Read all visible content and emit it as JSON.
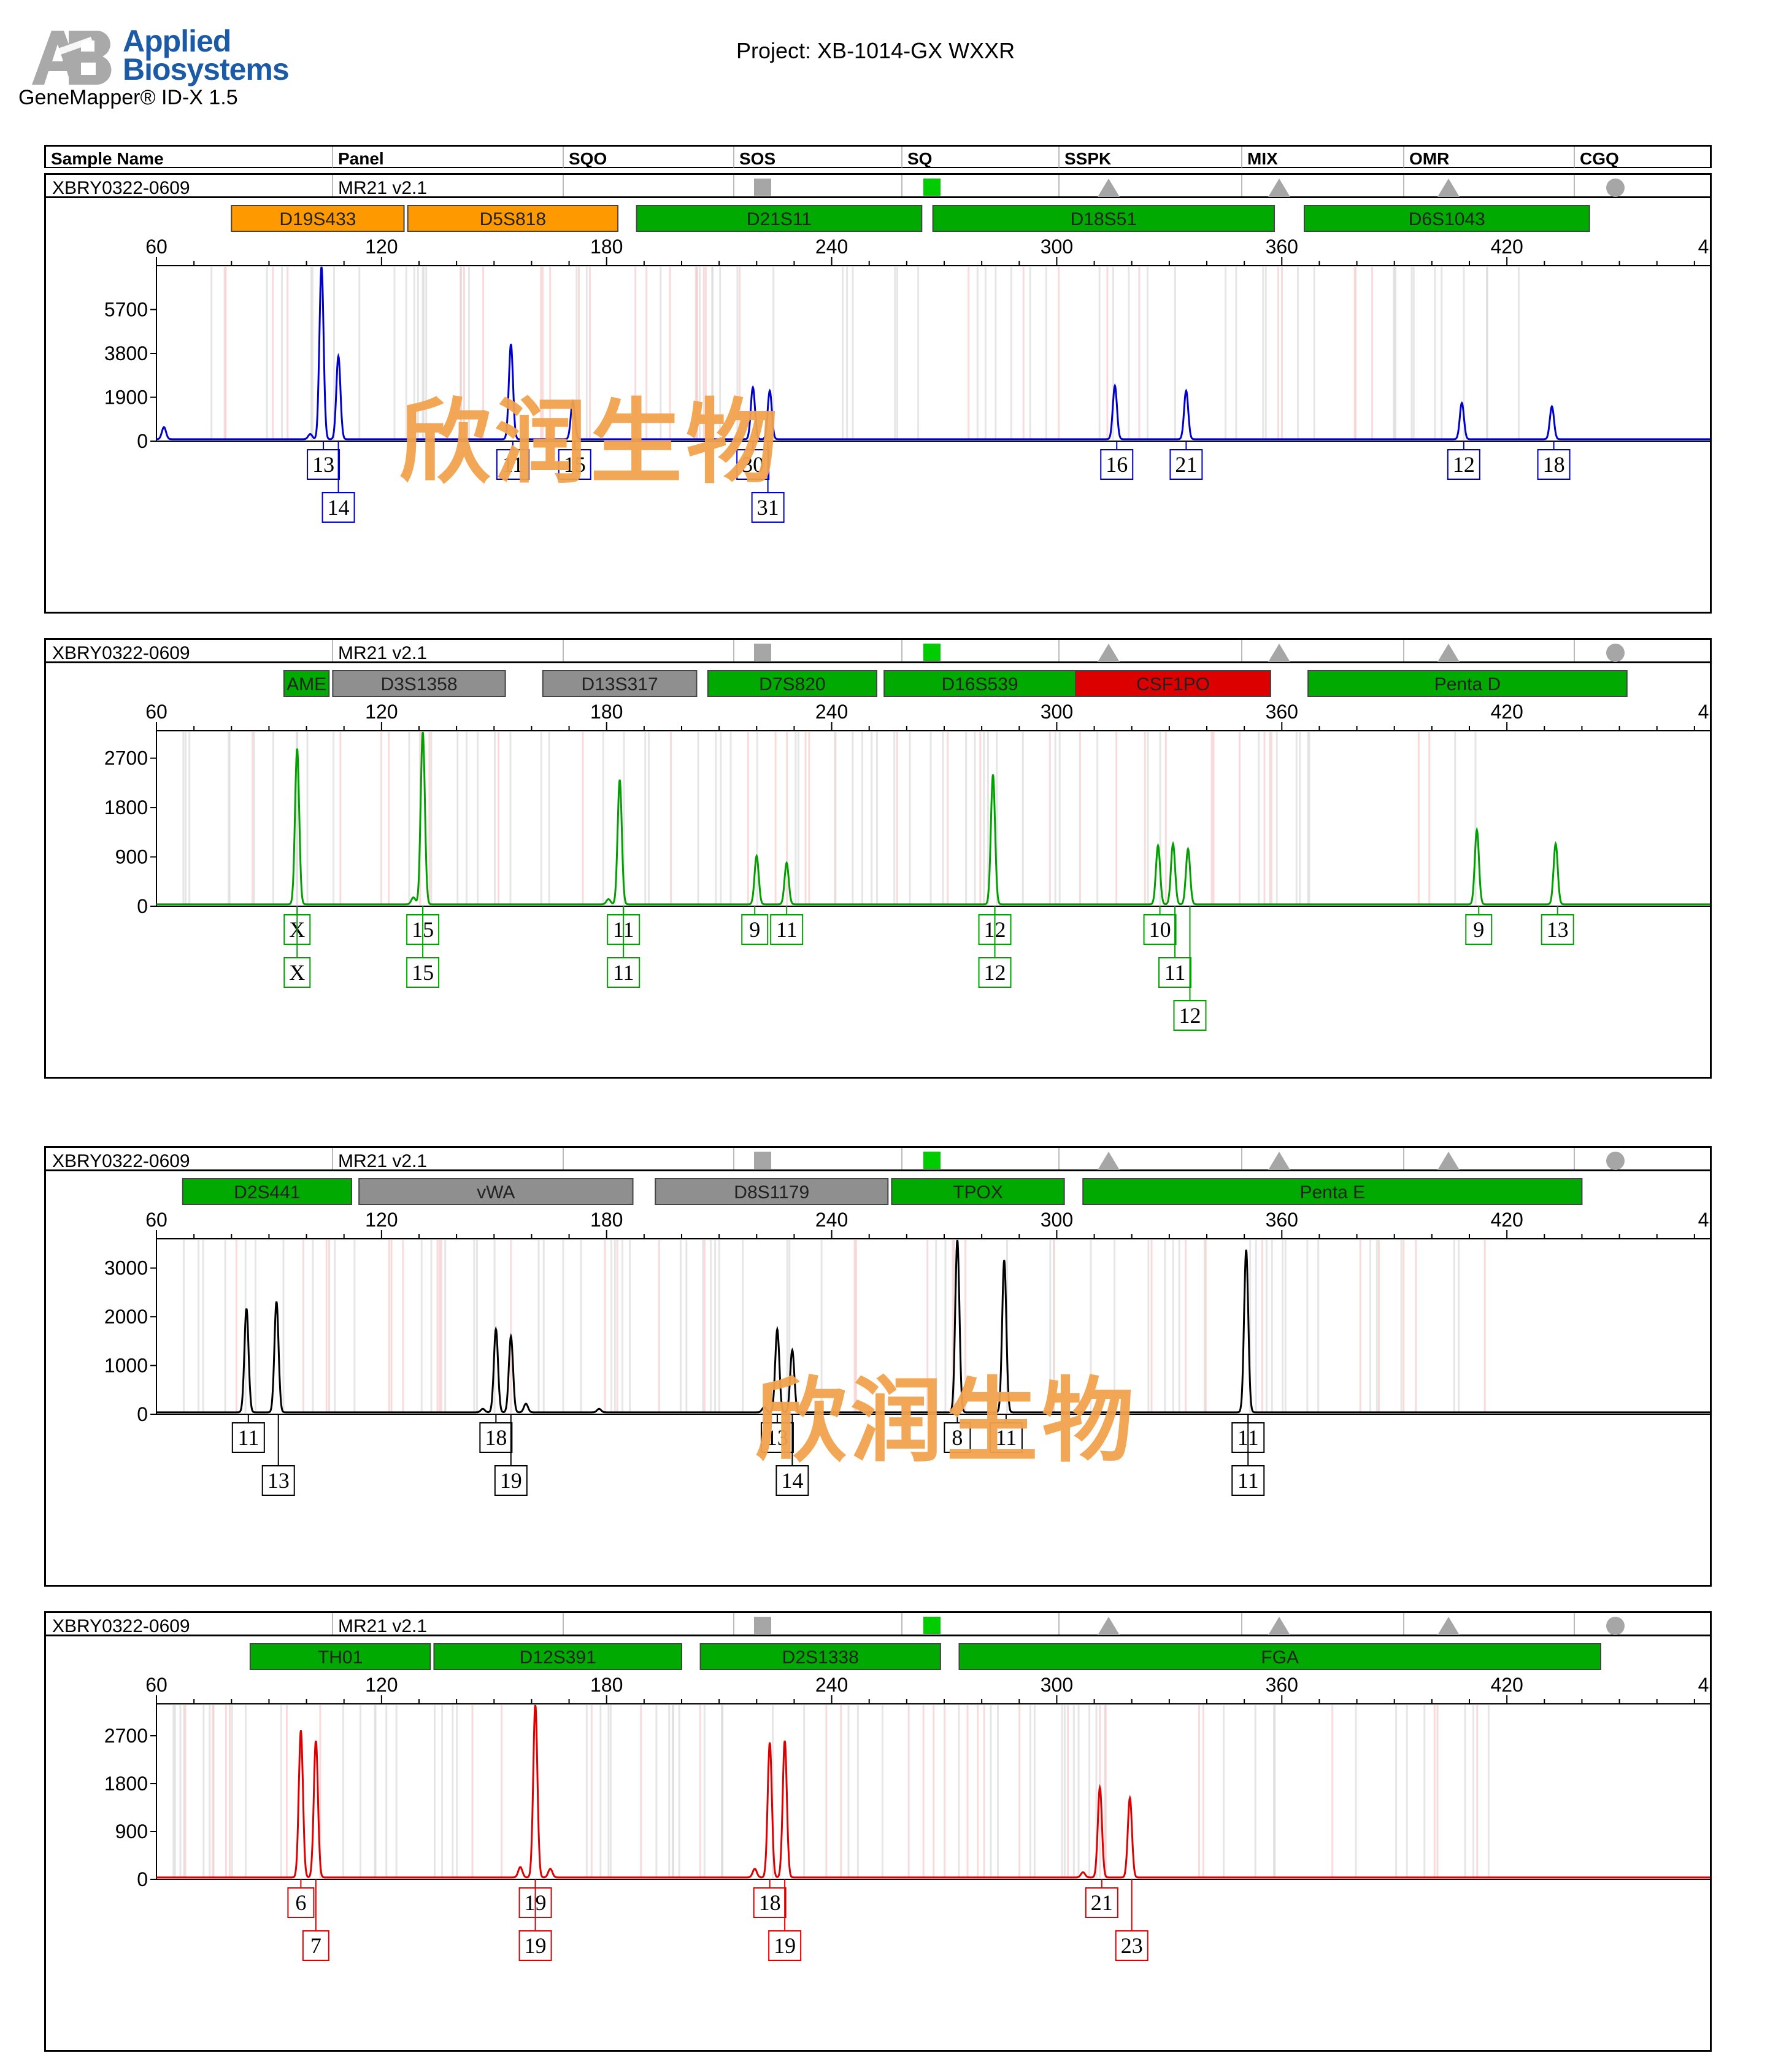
{
  "header": {
    "brand_line1": "Applied",
    "brand_line2": "Biosystems",
    "product": "GeneMapper® ID-X  1.5",
    "project": "Project: XB-1014-GX WXXR"
  },
  "columns": [
    "Sample Name",
    "Panel",
    "SQO",
    "SOS",
    "SQ",
    "SSPK",
    "MIX",
    "OMR",
    "CGQ"
  ],
  "quality_flags": [
    {
      "name": "SOS",
      "shape": "square",
      "color": "#a6a6a6"
    },
    {
      "name": "SQ",
      "shape": "square",
      "color": "#00cc00"
    },
    {
      "name": "SSPK",
      "shape": "triangle",
      "color": "#a6a6a6"
    },
    {
      "name": "MIX",
      "shape": "triangle",
      "color": "#a6a6a6"
    },
    {
      "name": "OMR",
      "shape": "triangle",
      "color": "#a6a6a6"
    },
    {
      "name": "CGQ",
      "shape": "circle",
      "color": "#a6a6a6"
    }
  ],
  "watermark": "欣润生物",
  "panels": [
    {
      "sample": "XBRY0322-0609",
      "panel_name": "MR21  v2.1",
      "dye_color": "#0000cc",
      "box_color": "#0000cc",
      "y_ticks": [
        "5700",
        "3800",
        "1900",
        "0"
      ],
      "y_values": [
        5700,
        3800,
        1900,
        0
      ],
      "y_max": 7600,
      "markers": [
        {
          "name": "D19S433",
          "start": 80,
          "end": 126,
          "color": "#ff9900"
        },
        {
          "name": "D5S818",
          "start": 127,
          "end": 183,
          "color": "#ff9900"
        },
        {
          "name": "D21S11",
          "start": 188,
          "end": 264,
          "color": "#00aa00"
        },
        {
          "name": "D18S51",
          "start": 267,
          "end": 358,
          "color": "#00aa00"
        },
        {
          "name": "D6S1043",
          "start": 366,
          "end": 442,
          "color": "#00aa00"
        }
      ],
      "peaks": [
        {
          "x": 62,
          "h": 0.07
        },
        {
          "x": 101,
          "h": 0.03
        },
        {
          "x": 104,
          "h": 1.0
        },
        {
          "x": 108.5,
          "h": 0.48
        },
        {
          "x": 154.5,
          "h": 0.55
        },
        {
          "x": 171,
          "h": 0.22
        },
        {
          "x": 219,
          "h": 0.3
        },
        {
          "x": 223.5,
          "h": 0.28
        },
        {
          "x": 315.5,
          "h": 0.31
        },
        {
          "x": 334.5,
          "h": 0.28
        },
        {
          "x": 408,
          "h": 0.21
        },
        {
          "x": 432,
          "h": 0.19
        }
      ],
      "alleles": [
        {
          "x": 104.5,
          "row": 0,
          "label": "13"
        },
        {
          "x": 108.5,
          "row": 1,
          "label": "14"
        },
        {
          "x": 155,
          "row": 0,
          "label": "11"
        },
        {
          "x": 171.5,
          "row": 0,
          "label": "15"
        },
        {
          "x": 219,
          "row": 0,
          "label": "30"
        },
        {
          "x": 223,
          "row": 1,
          "label": "31"
        },
        {
          "x": 316,
          "row": 0,
          "label": "16"
        },
        {
          "x": 334.5,
          "row": 0,
          "label": "21"
        },
        {
          "x": 408.5,
          "row": 0,
          "label": "12"
        },
        {
          "x": 432.5,
          "row": 0,
          "label": "18"
        }
      ]
    },
    {
      "sample": "XBRY0322-0609",
      "panel_name": "MR21  v2.1",
      "dye_color": "#00a000",
      "box_color": "#00a000",
      "y_ticks": [
        "2700",
        "1800",
        "900",
        "0"
      ],
      "y_values": [
        2700,
        1800,
        900,
        0
      ],
      "y_max": 3200,
      "markers": [
        {
          "name": "AME",
          "start": 94,
          "end": 106,
          "color": "#00aa00"
        },
        {
          "name": "D3S1358",
          "start": 107,
          "end": 153,
          "color": "#8f8f8f"
        },
        {
          "name": "D13S317",
          "start": 163,
          "end": 204,
          "color": "#8f8f8f"
        },
        {
          "name": "D7S820",
          "start": 207,
          "end": 252,
          "color": "#00aa00"
        },
        {
          "name": "D16S539",
          "start": 254,
          "end": 305,
          "color": "#00aa00"
        },
        {
          "name": "CSF1PO",
          "start": 305,
          "end": 357,
          "color": "#dd0000"
        },
        {
          "name": "Penta D",
          "start": 367,
          "end": 452,
          "color": "#00aa00"
        }
      ],
      "peaks": [
        {
          "x": 97.5,
          "h": 0.9
        },
        {
          "x": 131,
          "h": 1.0
        },
        {
          "x": 183.5,
          "h": 0.72
        },
        {
          "x": 220,
          "h": 0.28
        },
        {
          "x": 228,
          "h": 0.24
        },
        {
          "x": 283,
          "h": 0.75
        },
        {
          "x": 327,
          "h": 0.34
        },
        {
          "x": 331,
          "h": 0.35
        },
        {
          "x": 335,
          "h": 0.32
        },
        {
          "x": 412,
          "h": 0.43
        },
        {
          "x": 433,
          "h": 0.35
        },
        {
          "x": 128.5,
          "h": 0.04
        },
        {
          "x": 180.5,
          "h": 0.03
        }
      ],
      "alleles": [
        {
          "x": 97.5,
          "row": 0,
          "label": "X"
        },
        {
          "x": 97.5,
          "row": 1,
          "label": "X"
        },
        {
          "x": 131,
          "row": 0,
          "label": "15"
        },
        {
          "x": 131,
          "row": 1,
          "label": "15"
        },
        {
          "x": 184.5,
          "row": 0,
          "label": "11"
        },
        {
          "x": 184.5,
          "row": 1,
          "label": "11"
        },
        {
          "x": 219.5,
          "row": 0,
          "label": "9"
        },
        {
          "x": 228,
          "row": 0,
          "label": "11"
        },
        {
          "x": 283.5,
          "row": 0,
          "label": "12"
        },
        {
          "x": 283.5,
          "row": 1,
          "label": "12"
        },
        {
          "x": 327.5,
          "row": 0,
          "label": "10"
        },
        {
          "x": 331.5,
          "row": 1,
          "label": "11"
        },
        {
          "x": 335.5,
          "row": 2,
          "label": "12"
        },
        {
          "x": 412.5,
          "row": 0,
          "label": "9"
        },
        {
          "x": 433.5,
          "row": 0,
          "label": "13"
        }
      ]
    },
    {
      "sample": "XBRY0322-0609",
      "panel_name": "MR21  v2.1",
      "dye_color": "#000000",
      "box_color": "#000000",
      "y_ticks": [
        "3000",
        "2000",
        "1000",
        "0"
      ],
      "y_values": [
        3000,
        2000,
        1000,
        0
      ],
      "y_max": 3600,
      "markers": [
        {
          "name": "D2S441",
          "start": 67,
          "end": 112,
          "color": "#00aa00"
        },
        {
          "name": "vWA",
          "start": 114,
          "end": 187,
          "color": "#8f8f8f"
        },
        {
          "name": "D8S1179",
          "start": 193,
          "end": 255,
          "color": "#8f8f8f"
        },
        {
          "name": "TPOX",
          "start": 256,
          "end": 302,
          "color": "#00aa00"
        },
        {
          "name": "Penta E",
          "start": 307,
          "end": 440,
          "color": "#00aa00"
        }
      ],
      "peaks": [
        {
          "x": 84,
          "h": 0.6
        },
        {
          "x": 92,
          "h": 0.64
        },
        {
          "x": 150.5,
          "h": 0.48
        },
        {
          "x": 154.5,
          "h": 0.44
        },
        {
          "x": 158.5,
          "h": 0.05
        },
        {
          "x": 225.5,
          "h": 0.48
        },
        {
          "x": 229.5,
          "h": 0.36
        },
        {
          "x": 273.5,
          "h": 1.0
        },
        {
          "x": 286,
          "h": 0.88
        },
        {
          "x": 350.5,
          "h": 0.94
        },
        {
          "x": 178,
          "h": 0.02
        },
        {
          "x": 147,
          "h": 0.02
        },
        {
          "x": 222,
          "h": 0.03
        }
      ],
      "alleles": [
        {
          "x": 84.5,
          "row": 0,
          "label": "11"
        },
        {
          "x": 92.5,
          "row": 1,
          "label": "13"
        },
        {
          "x": 150.5,
          "row": 0,
          "label": "18"
        },
        {
          "x": 154.5,
          "row": 1,
          "label": "19"
        },
        {
          "x": 225.5,
          "row": 0,
          "label": "13"
        },
        {
          "x": 229.5,
          "row": 1,
          "label": "14"
        },
        {
          "x": 273.5,
          "row": 0,
          "label": "8"
        },
        {
          "x": 286.5,
          "row": 0,
          "label": "11"
        },
        {
          "x": 351,
          "row": 0,
          "label": "11"
        },
        {
          "x": 351,
          "row": 1,
          "label": "11"
        }
      ]
    },
    {
      "sample": "XBRY0322-0609",
      "panel_name": "MR21  v2.1",
      "dye_color": "#dd0000",
      "box_color": "#dd0000",
      "y_ticks": [
        "2700",
        "1800",
        "900",
        "0"
      ],
      "y_values": [
        2700,
        1800,
        900,
        0
      ],
      "y_max": 3300,
      "markers": [
        {
          "name": "TH01",
          "start": 85,
          "end": 133,
          "color": "#00aa00"
        },
        {
          "name": "D12S391",
          "start": 134,
          "end": 200,
          "color": "#00aa00"
        },
        {
          "name": "D2S1338",
          "start": 205,
          "end": 269,
          "color": "#00aa00"
        },
        {
          "name": "FGA",
          "start": 274,
          "end": 445,
          "color": "#00aa00"
        }
      ],
      "peaks": [
        {
          "x": 98.5,
          "h": 0.85
        },
        {
          "x": 102.5,
          "h": 0.79
        },
        {
          "x": 161,
          "h": 1.0
        },
        {
          "x": 157,
          "h": 0.06
        },
        {
          "x": 165,
          "h": 0.05
        },
        {
          "x": 223.5,
          "h": 0.78
        },
        {
          "x": 227.5,
          "h": 0.79
        },
        {
          "x": 219.5,
          "h": 0.05
        },
        {
          "x": 311.5,
          "h": 0.52
        },
        {
          "x": 319.5,
          "h": 0.46
        },
        {
          "x": 307,
          "h": 0.03
        }
      ],
      "alleles": [
        {
          "x": 98.5,
          "row": 0,
          "label": "6"
        },
        {
          "x": 102.5,
          "row": 1,
          "label": "7"
        },
        {
          "x": 161,
          "row": 0,
          "label": "19"
        },
        {
          "x": 161,
          "row": 1,
          "label": "19"
        },
        {
          "x": 223.5,
          "row": 0,
          "label": "18"
        },
        {
          "x": 227.5,
          "row": 1,
          "label": "19"
        },
        {
          "x": 312,
          "row": 0,
          "label": "21"
        },
        {
          "x": 320,
          "row": 1,
          "label": "23"
        }
      ]
    }
  ],
  "x_axis": {
    "ticks": [
      "60",
      "120",
      "180",
      "240",
      "300",
      "360",
      "420",
      "480"
    ],
    "values": [
      60,
      120,
      180,
      240,
      300,
      360,
      420,
      480
    ],
    "min": 60,
    "max": 480
  }
}
